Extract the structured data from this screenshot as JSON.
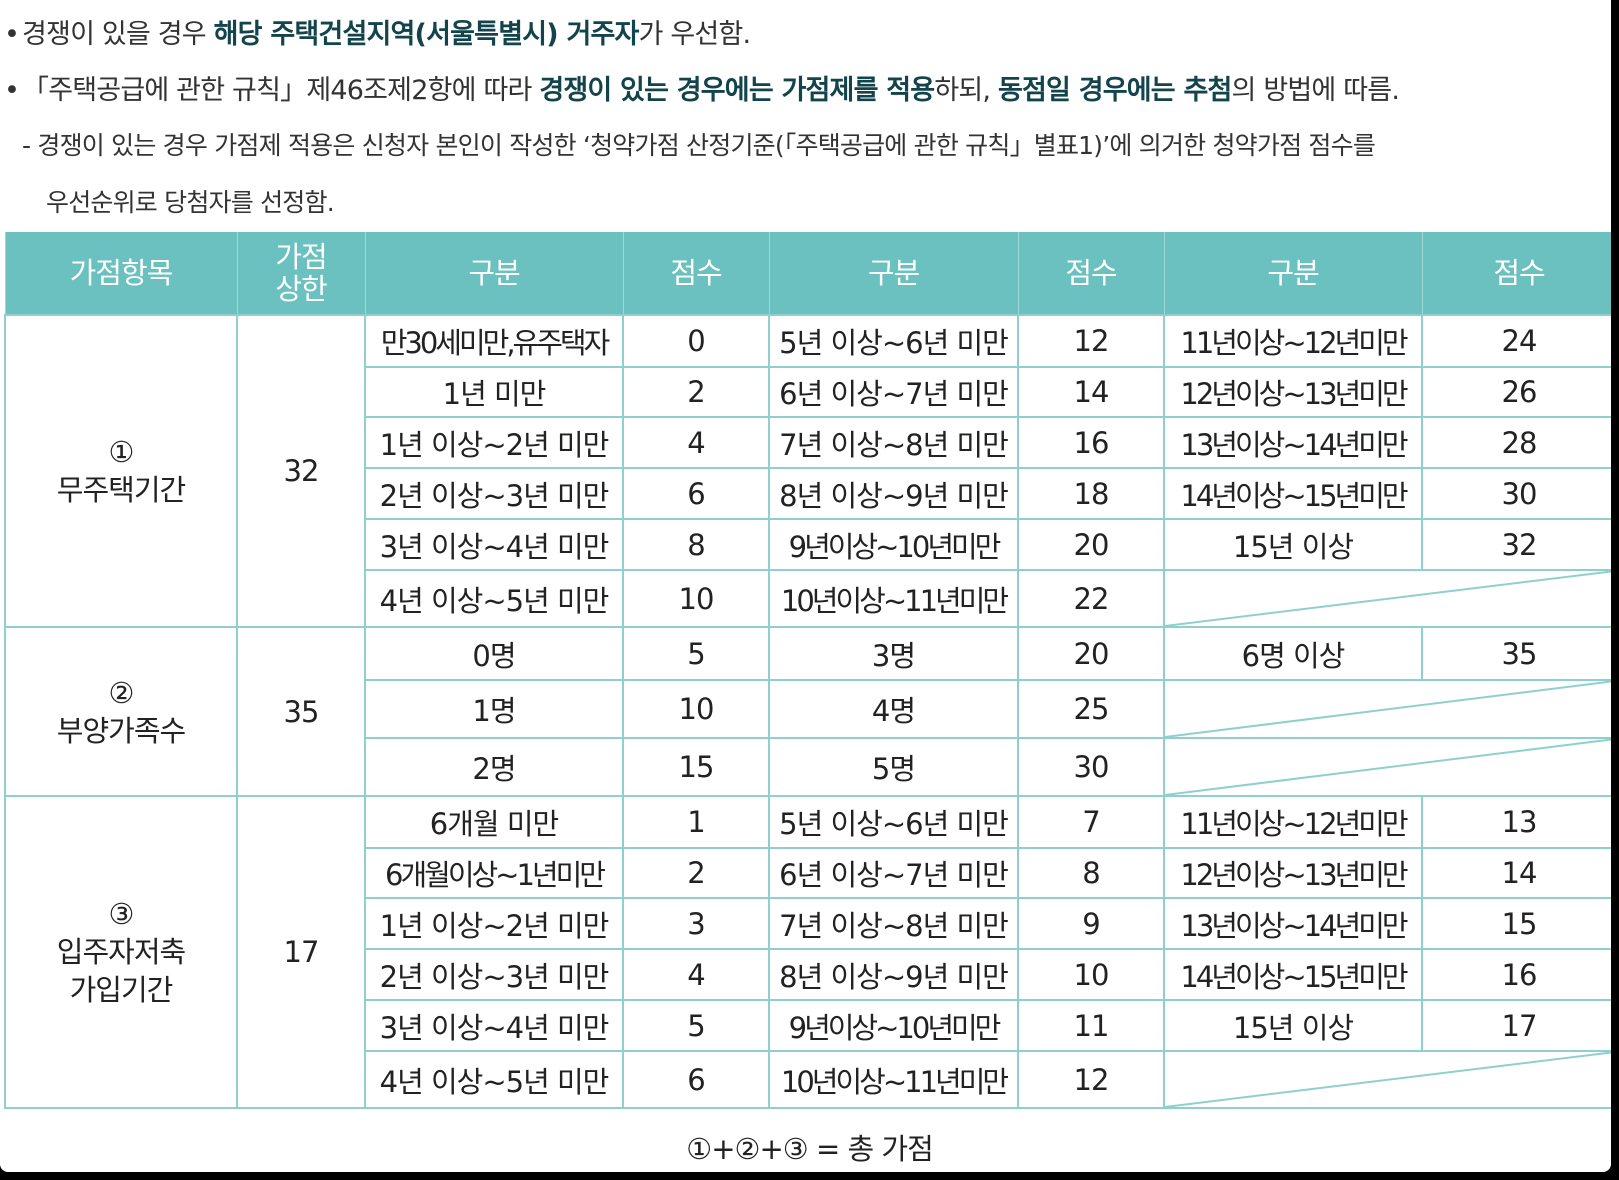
{
  "notes": {
    "line1": {
      "bullet": "•",
      "t1": "경쟁이 있을 경우 ",
      "b1": "해당 주택건설지역(서울특별시) 거주자",
      "t2": "가 우선함."
    },
    "line2": {
      "bullet": "•",
      "t1": "「주택공급에 관한 규칙」제46조제2항에 따라 ",
      "b1": "경쟁이 있는 경우에는 가점제를 적용",
      "t2": "하되, ",
      "b2": "동점일 경우에는 추첨",
      "t3": "의 방법에 따름."
    },
    "line3": "- 경쟁이 있는 경우 가점제 적용은 신청자 본인이 작성한 ‘청약가점 산정기준(「주택공급에 관한 규칙」별표1)’에 의거한 청약가점 점수를",
    "line4": "우선순위로 당첨자를 선정함."
  },
  "table": {
    "headers": {
      "item": "가점항목",
      "limit_line1": "가점",
      "limit_line2": "상한",
      "category": "구분",
      "score": "점수"
    },
    "groups": [
      {
        "num": "①",
        "name_line1": "무주택기간",
        "name_line2": "",
        "limit": "32",
        "rows": [
          [
            "만30세미만,유주택자",
            "0",
            "5년 이상~6년 미만",
            "12",
            "11년이상~12년미만",
            "24"
          ],
          [
            "1년 미만",
            "2",
            "6년 이상~7년 미만",
            "14",
            "12년이상~13년미만",
            "26"
          ],
          [
            "1년 이상~2년 미만",
            "4",
            "7년 이상~8년 미만",
            "16",
            "13년이상~14년미만",
            "28"
          ],
          [
            "2년 이상~3년 미만",
            "6",
            "8년 이상~9년 미만",
            "18",
            "14년이상~15년미만",
            "30"
          ],
          [
            "3년 이상~4년 미만",
            "8",
            "9년이상~10년미만",
            "20",
            "15년 이상",
            "32"
          ],
          [
            "4년 이상~5년 미만",
            "10",
            "10년이상~11년미만",
            "22",
            "",
            ""
          ]
        ]
      },
      {
        "num": "②",
        "name_line1": "부양가족수",
        "name_line2": "",
        "limit": "35",
        "rows": [
          [
            "0명",
            "5",
            "3명",
            "20",
            "6명 이상",
            "35"
          ],
          [
            "1명",
            "10",
            "4명",
            "25",
            "",
            ""
          ],
          [
            "2명",
            "15",
            "5명",
            "30",
            "",
            ""
          ]
        ]
      },
      {
        "num": "③",
        "name_line1": "입주자저축",
        "name_line2": "가입기간",
        "limit": "17",
        "rows": [
          [
            "6개월 미만",
            "1",
            "5년 이상~6년 미만",
            "7",
            "11년이상~12년미만",
            "13"
          ],
          [
            "6개월이상~1년미만",
            "2",
            "6년 이상~7년 미만",
            "8",
            "12년이상~13년미만",
            "14"
          ],
          [
            "1년 이상~2년 미만",
            "3",
            "7년 이상~8년 미만",
            "9",
            "13년이상~14년미만",
            "15"
          ],
          [
            "2년 이상~3년 미만",
            "4",
            "8년 이상~9년 미만",
            "10",
            "14년이상~15년미만",
            "16"
          ],
          [
            "3년 이상~4년 미만",
            "5",
            "9년이상~10년미만",
            "11",
            "15년 이상",
            "17"
          ],
          [
            "4년 이상~5년 미만",
            "6",
            "10년이상~11년미만",
            "12",
            "",
            ""
          ]
        ]
      }
    ],
    "total": "①+②+③ = 총 가점"
  }
}
